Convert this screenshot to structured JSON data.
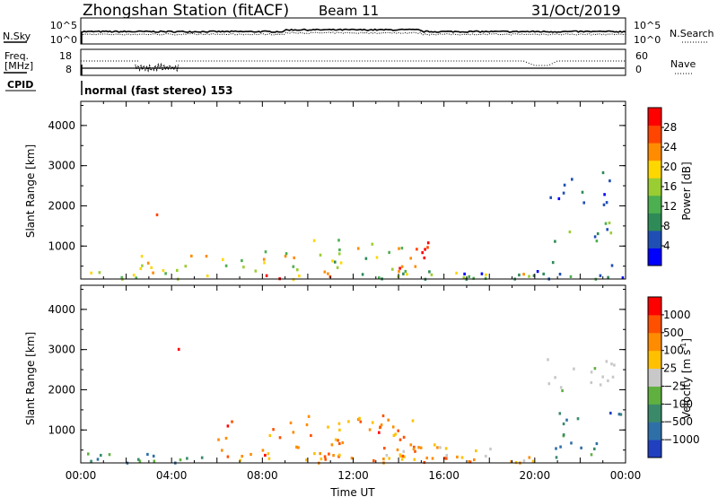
{
  "header": {
    "station": "Zhongshan Station (fitACF)",
    "beam": "Beam 11",
    "date": "31/Oct/2019"
  },
  "top_panels": {
    "nsky_label": "N.Sky",
    "nsearch_label": "N.Search",
    "noise_ticks": [
      "10^5",
      "10^0"
    ],
    "freq_label_1": "Freq.",
    "freq_label_2": "[MHz]",
    "freq_ticks": [
      "18",
      "8"
    ],
    "nave_label": "Nave",
    "nave_ticks": [
      "60",
      "0"
    ],
    "cpid_label": "CPID",
    "cpid_text": "normal (fast stereo) 153"
  },
  "chart_data": [
    {
      "type": "heatmap",
      "title": "",
      "ylabel": "Slant Range [km]",
      "xlabel": "",
      "x_range_hours": [
        0,
        24
      ],
      "ylim": [
        180,
        4600
      ],
      "yticks": [
        "1000",
        "2000",
        "3000",
        "4000"
      ],
      "colorbar": {
        "label": "Power [dB]",
        "min": 0,
        "max": 32,
        "ticks": [
          "4",
          "8",
          "12",
          "16",
          "20",
          "24",
          "28"
        ],
        "colors": [
          "#0000ff",
          "#1f4fb4",
          "#2e8b57",
          "#4caf50",
          "#9acd32",
          "#ffd700",
          "#ff8c00",
          "#ff4500",
          "#ff0000"
        ]
      }
    },
    {
      "type": "heatmap",
      "title": "",
      "ylabel": "Slant Range [km]",
      "xlabel": "Time UT",
      "x_range_hours": [
        0,
        24
      ],
      "ylim": [
        180,
        4600
      ],
      "yticks": [
        "1000",
        "2000",
        "3000",
        "4000"
      ],
      "xticks": [
        "00:00",
        "04:00",
        "08:00",
        "12:00",
        "16:00",
        "20:00",
        "00:00"
      ],
      "colorbar": {
        "label": "Velocity [m s",
        "label_sup": "-1",
        "label_end": "]",
        "ticks": [
          "1000",
          "500",
          "100",
          "25",
          "−25",
          "−100",
          "−500",
          "−1000"
        ],
        "colors": [
          "#2040c0",
          "#2e6fa8",
          "#3a8a6a",
          "#60b040",
          "#c8c8c8",
          "#ffc000",
          "#ff8c00",
          "#ff5000",
          "#ff0000"
        ]
      }
    }
  ]
}
